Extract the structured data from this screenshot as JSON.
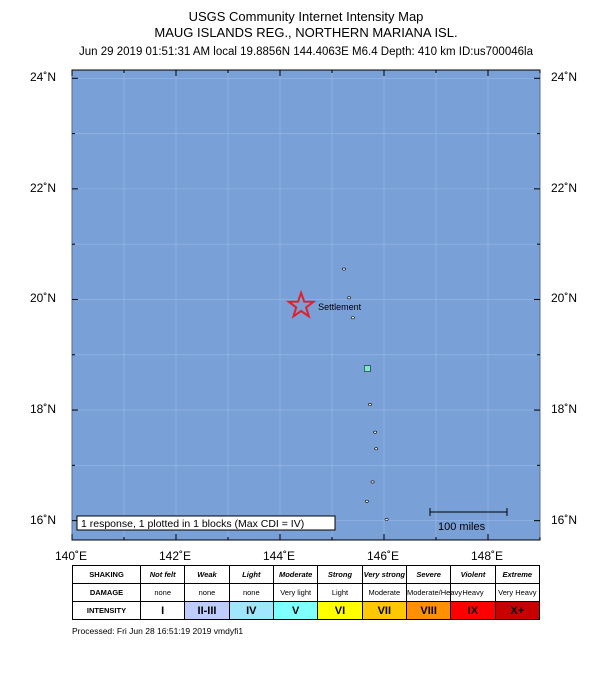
{
  "header": {
    "line1": "USGS Community Internet Intensity Map",
    "line2": "MAUG ISLANDS REG., NORTHERN MARIANA ISL.",
    "line3": "Jun 29 2019 01:51:31 AM local 19.8856N 144.4063E M6.4 Depth: 410 km ID:us700046la"
  },
  "map": {
    "ocean_color": "#7aa0d8",
    "lon_range": [
      140,
      149
    ],
    "lat_range": [
      15.65,
      24.15
    ],
    "lat_ticks": [
      {
        "value": 24,
        "label": "24˚N"
      },
      {
        "value": 22,
        "label": "22˚N"
      },
      {
        "value": 20,
        "label": "20˚N"
      },
      {
        "value": 18,
        "label": "18˚N"
      },
      {
        "value": 16,
        "label": "16˚N"
      }
    ],
    "lon_ticks": [
      {
        "value": 140,
        "label": "140˚E"
      },
      {
        "value": 142,
        "label": "142˚E"
      },
      {
        "value": 144,
        "label": "144˚E"
      },
      {
        "value": 146,
        "label": "146˚E"
      },
      {
        "value": 148,
        "label": "148˚E"
      }
    ],
    "epicenter": {
      "lat": 19.8856,
      "lon": 144.4063,
      "color": "#e0202a"
    },
    "settlement_label": "Settlement",
    "response_box": "1 response, 1 plotted in 1 blocks (Max CDI = IV)",
    "scale_bar_label": "100 miles",
    "cdi_point": {
      "lat": 18.75,
      "lon": 145.68,
      "color": "#7ee8c8"
    },
    "islands": [
      {
        "lat": 20.55,
        "lon": 145.23
      },
      {
        "lat": 20.03,
        "lon": 145.33
      },
      {
        "lat": 19.67,
        "lon": 145.4
      },
      {
        "lat": 18.1,
        "lon": 145.73
      },
      {
        "lat": 17.6,
        "lon": 145.83
      },
      {
        "lat": 17.3,
        "lon": 145.85
      },
      {
        "lat": 16.7,
        "lon": 145.78
      },
      {
        "lat": 16.35,
        "lon": 145.67
      },
      {
        "lat": 16.02,
        "lon": 146.05
      }
    ]
  },
  "scale_table": {
    "shaking_label": "SHAKING",
    "damage_label": "DAMAGE",
    "intensity_label": "INTENSITY",
    "columns": [
      {
        "shaking": "Not felt",
        "damage": "none",
        "intensity": "I",
        "color": "#ffffff"
      },
      {
        "shaking": "Weak",
        "damage": "none",
        "intensity": "II-III",
        "color": "#bfccff"
      },
      {
        "shaking": "Light",
        "damage": "none",
        "intensity": "IV",
        "color": "#a0e6ff"
      },
      {
        "shaking": "Moderate",
        "damage": "Very light",
        "intensity": "V",
        "color": "#80ffff"
      },
      {
        "shaking": "Strong",
        "damage": "Light",
        "intensity": "VI",
        "color": "#ffff00"
      },
      {
        "shaking": "Very strong",
        "damage": "Moderate",
        "intensity": "VII",
        "color": "#ffc800"
      },
      {
        "shaking": "Severe",
        "damage": "Moderate/Heavy",
        "intensity": "VIII",
        "color": "#ff9100"
      },
      {
        "shaking": "Violent",
        "damage": "Heavy",
        "intensity": "IX",
        "color": "#ff0000"
      },
      {
        "shaking": "Extreme",
        "damage": "Very Heavy",
        "intensity": "X+",
        "color": "#c80000"
      }
    ]
  },
  "footer": {
    "processed": "Processed: Fri Jun 28 16:51:19 2019 vmdyfi1"
  }
}
